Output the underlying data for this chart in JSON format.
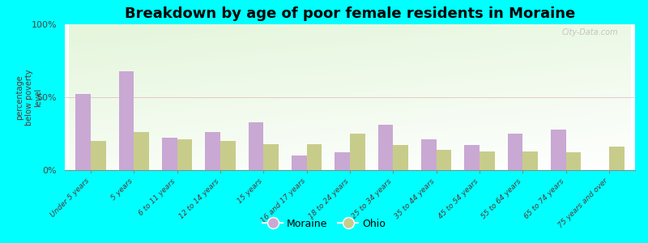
{
  "title": "Breakdown by age of poor female residents in Moraine",
  "ylabel": "percentage\nbelow poverty\nlevel",
  "categories": [
    "Under 5 years",
    "5 years",
    "6 to 11 years",
    "12 to 14 years",
    "15 years",
    "16 and 17 years",
    "18 to 24 years",
    "25 to 34 years",
    "35 to 44 years",
    "45 to 54 years",
    "55 to 64 years",
    "65 to 74 years",
    "75 years and over"
  ],
  "moraine_values": [
    52,
    68,
    22,
    26,
    33,
    10,
    12,
    31,
    21,
    17,
    25,
    28,
    0
  ],
  "ohio_values": [
    20,
    26,
    21,
    20,
    18,
    18,
    25,
    17,
    14,
    13,
    13,
    12,
    16
  ],
  "moraine_color": "#c9a8d4",
  "ohio_color": "#c8cc8a",
  "ylim": [
    0,
    100
  ],
  "yticks": [
    0,
    50,
    100
  ],
  "ytick_labels": [
    "0%",
    "50%",
    "100%"
  ],
  "bar_width": 0.35,
  "legend_labels": [
    "Moraine",
    "Ohio"
  ],
  "watermark": "City-Data.com",
  "bg_color": "#00ffff",
  "title_fontsize": 13
}
